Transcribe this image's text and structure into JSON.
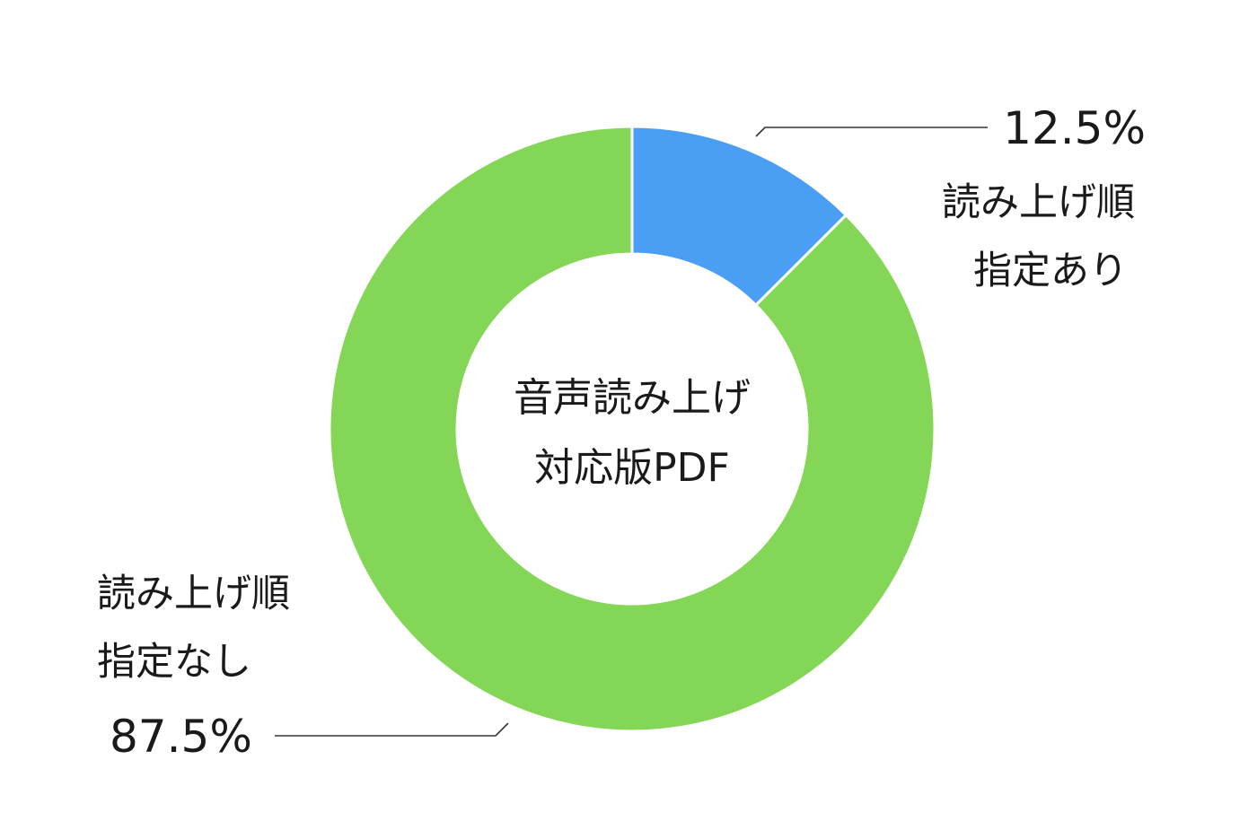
{
  "chart_data": {
    "type": "pie",
    "variant": "donut",
    "title": "",
    "center_label": [
      "音声読み上げ",
      "対応版PDF"
    ],
    "slices": [
      {
        "label_lines": [
          "読み上げ順",
          "指定あり"
        ],
        "value": 12.5,
        "value_label": "12.5%",
        "color": "#4a9ff5"
      },
      {
        "label_lines": [
          "読み上げ順",
          "指定なし"
        ],
        "value": 87.5,
        "value_label": "87.5%",
        "color": "#84d656"
      }
    ],
    "start_angle": "12 o'clock",
    "direction": "clockwise",
    "legend": "none"
  }
}
